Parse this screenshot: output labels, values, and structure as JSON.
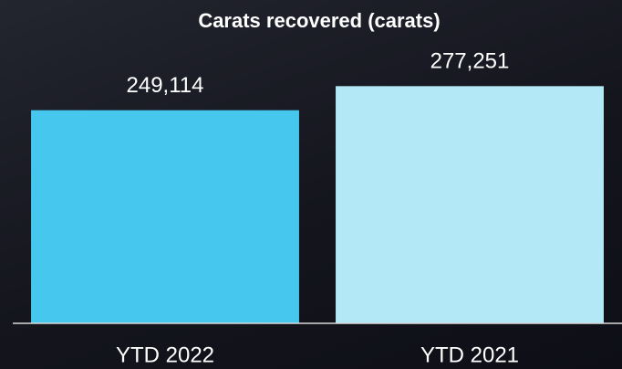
{
  "chart_data": {
    "type": "bar",
    "title": "Carats recovered (carats)",
    "categories": [
      "YTD 2022",
      "YTD 2021"
    ],
    "values": [
      249114,
      277251
    ],
    "value_labels": [
      "249,114",
      "277,251"
    ],
    "colors": [
      "#46c7ee",
      "#b3e8f7"
    ],
    "ylim": [
      0,
      300000
    ]
  }
}
